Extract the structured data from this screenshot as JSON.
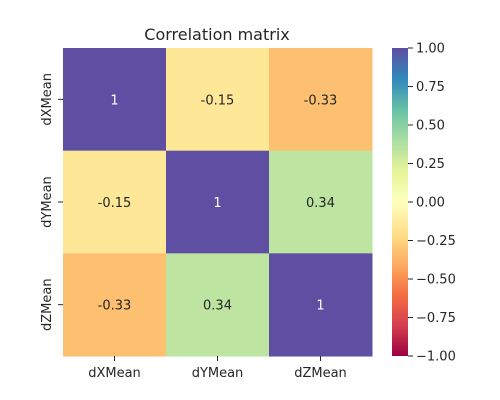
{
  "chart_data": {
    "type": "heatmap",
    "title": "Correlation matrix",
    "x_categories": [
      "dXMean",
      "dYMean",
      "dZMean"
    ],
    "y_categories": [
      "dXMean",
      "dYMean",
      "dZMean"
    ],
    "values": [
      [
        1,
        -0.15,
        -0.33
      ],
      [
        -0.15,
        1,
        0.34
      ],
      [
        -0.33,
        0.34,
        1
      ]
    ],
    "cell_labels": [
      [
        "1",
        "-0.15",
        "-0.33"
      ],
      [
        "-0.15",
        "1",
        "0.34"
      ],
      [
        "-0.33",
        "0.34",
        "1"
      ]
    ],
    "colorbar": {
      "colormap": "Spectral",
      "vmin": -1.0,
      "vmax": 1.0,
      "ticks": [
        1.0,
        0.75,
        0.5,
        0.25,
        0.0,
        -0.25,
        -0.5,
        -0.75,
        -1.0
      ],
      "tick_labels": [
        "1.00",
        "0.75",
        "0.50",
        "0.25",
        "0.00",
        "−0.25",
        "−0.50",
        "−0.75",
        "−1.00"
      ]
    },
    "grid": false,
    "colors": {
      "high": "#5e4fa2",
      "mid": "#ffffbf",
      "low": "#9e0142"
    }
  }
}
